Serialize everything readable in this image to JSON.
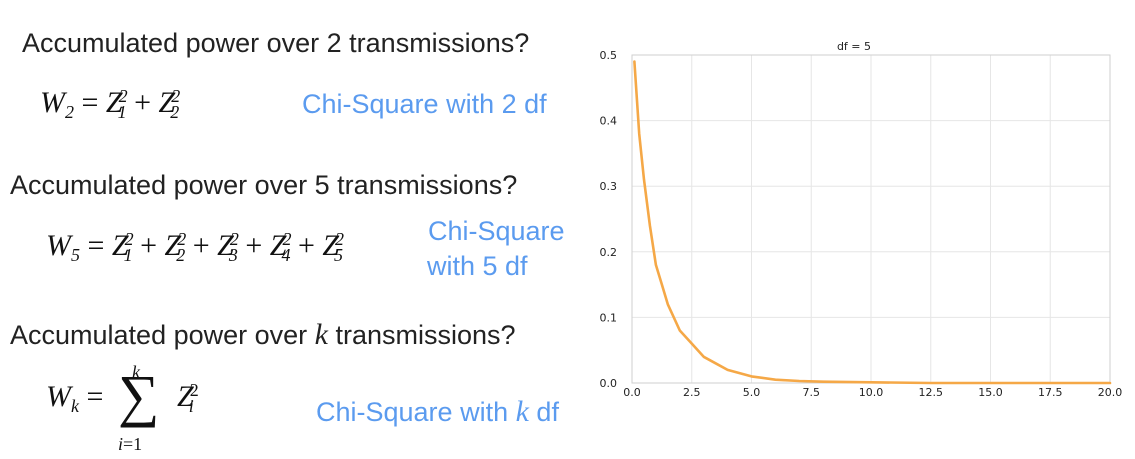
{
  "slide": {
    "heading_2": "Accumulated power over 2 transmissions?",
    "heading_5": "Accumulated power over 5 transmissions?",
    "heading_k_prefix": "Accumulated power over ",
    "heading_k_var": "k",
    "heading_k_suffix": " transmissions?",
    "note_2": "Chi-Square with 2 df",
    "note_5_line1": "Chi-Square",
    "note_5_line2": "with 5 df",
    "note_k_prefix": "Chi-Square with ",
    "note_k_var": "k",
    "note_k_suffix": " df"
  },
  "equations": {
    "w2": {
      "lhs_var": "W",
      "lhs_sub": "2",
      "terms": [
        "1",
        "2"
      ]
    },
    "w5": {
      "lhs_var": "W",
      "lhs_sub": "5",
      "terms": [
        "1",
        "2",
        "3",
        "4",
        "5"
      ]
    },
    "wk": {
      "lhs_var": "W",
      "lhs_sub": "k",
      "upper": "k",
      "lower_var": "i",
      "lower_eq": "=1",
      "term_var": "Z",
      "term_sub": "i",
      "term_sup": "2"
    }
  },
  "colors": {
    "curve": "#f5a847",
    "note": "#5b9bef",
    "grid": "#e6e6e6"
  },
  "chart_data": {
    "type": "line",
    "title": "df = 5",
    "xlabel": "",
    "ylabel": "",
    "xlim": [
      0,
      20
    ],
    "ylim": [
      0,
      0.5
    ],
    "grid": true,
    "x_ticks": [
      "0.0",
      "2.5",
      "5.0",
      "7.5",
      "10.0",
      "12.5",
      "15.0",
      "17.5",
      "20.0"
    ],
    "y_ticks": [
      "0.0",
      "0.1",
      "0.2",
      "0.3",
      "0.4",
      "0.5"
    ],
    "series": [
      {
        "color": "#f5a847",
        "x": [
          0.1,
          0.3,
          0.5,
          0.75,
          1.0,
          1.25,
          1.5,
          2.0,
          2.5,
          3.0,
          3.5,
          4.0,
          5.0,
          6.0,
          7.0,
          8.0,
          10.0,
          12.5,
          15.0,
          17.5,
          20.0
        ],
        "y": [
          0.49,
          0.38,
          0.31,
          0.24,
          0.18,
          0.15,
          0.12,
          0.08,
          0.06,
          0.04,
          0.03,
          0.02,
          0.01,
          0.005,
          0.003,
          0.002,
          0.001,
          0.0,
          0.0,
          0.0,
          0.0
        ]
      }
    ]
  }
}
